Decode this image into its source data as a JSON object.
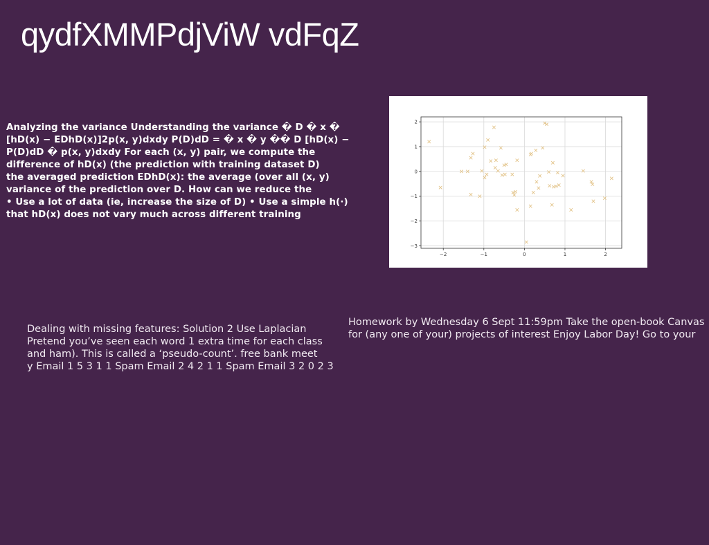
{
  "slide": {
    "title": "qydfXMMPdjViW vdFqZ"
  },
  "variance_block": {
    "lines": [
      "Analyzing the variance Understanding the variance � D � x �",
      "[hD(x) − EDhD(x)]2p(x, y)dxdy P(D)dD = � x � y �� D [hD(x) −",
      "P(D)dD � p(x, y)dxdy For each (x, y) pair, we compute the",
      "difference of hD(x) (the prediction with training dataset D)",
      "the averaged prediction EDhD(x): the average (over all (x, y)",
      "variance of the prediction over D. How can we reduce the",
      "• Use a lot of data (ie, increase the size of D) • Use a simple h(·)",
      "that hD(x) does not vary much across different training"
    ]
  },
  "missing_features": {
    "lines": [
      "Dealing with missing features: Solution 2 Use Laplacian",
      "Pretend you’ve seen each word 1 extra time for each class",
      "and ham). This is called a ‘pseudo-count’. free bank meet",
      "y Email 1 5 3 1 1 Spam Email 2 4 2 1 1 Spam Email 3 2 0 2 3"
    ]
  },
  "homework": {
    "lines": [
      "Homework by Wednesday 6 Sept 11:59pm  Take the open-book Canvas",
      "for (any one of your) projects of interest  Enjoy Labor Day!  Go to your"
    ]
  },
  "colors": {
    "background": "#45244b",
    "marker": "#e3c48a",
    "axis": "#333333",
    "grid": "#d9d9d9"
  },
  "chart_data": {
    "type": "scatter",
    "marker": "x",
    "title": "",
    "xlabel": "",
    "ylabel": "",
    "xlim": [
      -2.55,
      2.4
    ],
    "ylim": [
      -3.1,
      2.2
    ],
    "xticks": [
      -2,
      -1,
      0,
      1,
      2
    ],
    "yticks": [
      -3,
      -2,
      -1,
      0,
      1,
      2
    ],
    "xtick_labels": [
      "−2",
      "−1",
      "0",
      "1",
      "2"
    ],
    "ytick_labels": [
      "−3",
      "−2",
      "−1",
      "0",
      "1",
      "2"
    ],
    "grid": true,
    "points": [
      [
        -2.35,
        1.2
      ],
      [
        -2.07,
        -0.65
      ],
      [
        -1.55,
        0.0
      ],
      [
        -1.4,
        0.0
      ],
      [
        -1.32,
        0.55
      ],
      [
        -1.27,
        0.72
      ],
      [
        -1.32,
        -0.93
      ],
      [
        -1.1,
        -1.0
      ],
      [
        -1.05,
        0.02
      ],
      [
        -0.98,
        0.98
      ],
      [
        -0.98,
        -0.25
      ],
      [
        -0.93,
        -0.12
      ],
      [
        -0.9,
        1.27
      ],
      [
        -0.83,
        0.42
      ],
      [
        -0.75,
        1.78
      ],
      [
        -0.72,
        0.15
      ],
      [
        -0.7,
        0.45
      ],
      [
        -0.65,
        0.02
      ],
      [
        -0.58,
        0.95
      ],
      [
        -0.55,
        -0.15
      ],
      [
        -0.5,
        0.25
      ],
      [
        -0.48,
        -0.12
      ],
      [
        -0.45,
        0.28
      ],
      [
        -0.3,
        -0.12
      ],
      [
        -0.28,
        -0.85
      ],
      [
        -0.25,
        -0.95
      ],
      [
        -0.22,
        -0.82
      ],
      [
        -0.18,
        0.45
      ],
      [
        -0.18,
        -1.55
      ],
      [
        0.05,
        -2.85
      ],
      [
        0.15,
        0.68
      ],
      [
        0.17,
        0.72
      ],
      [
        0.15,
        -1.4
      ],
      [
        0.22,
        -0.85
      ],
      [
        0.28,
        0.85
      ],
      [
        0.3,
        -0.42
      ],
      [
        0.35,
        -0.67
      ],
      [
        0.38,
        -0.18
      ],
      [
        0.45,
        0.95
      ],
      [
        0.5,
        1.95
      ],
      [
        0.55,
        1.9
      ],
      [
        0.6,
        -0.02
      ],
      [
        0.62,
        -0.58
      ],
      [
        0.68,
        -1.35
      ],
      [
        0.7,
        0.35
      ],
      [
        0.72,
        -0.62
      ],
      [
        0.78,
        -0.6
      ],
      [
        0.82,
        -0.05
      ],
      [
        0.85,
        -0.55
      ],
      [
        0.95,
        -0.17
      ],
      [
        1.15,
        -1.55
      ],
      [
        1.45,
        0.02
      ],
      [
        1.65,
        -0.42
      ],
      [
        1.68,
        -0.52
      ],
      [
        1.7,
        -1.2
      ],
      [
        1.98,
        -1.08
      ],
      [
        2.15,
        -0.28
      ]
    ]
  }
}
